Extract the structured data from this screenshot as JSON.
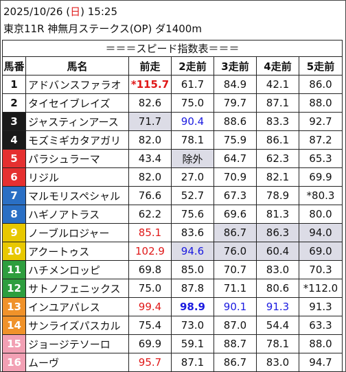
{
  "header": {
    "date": "2025/10/26",
    "day_open": "(",
    "day": "日",
    "day_close": ")",
    "time": "15:25",
    "race": "東京11R 神無月ステークス(OP) ダ1400m"
  },
  "table": {
    "title": "＝＝＝スピード指数表＝＝＝",
    "columns": [
      "馬番",
      "馬名",
      "前走",
      "2走前",
      "3走前",
      "4走前",
      "5走前"
    ],
    "rows": [
      {
        "num": "1",
        "bg": "#ffffff",
        "fg": "#111111",
        "name": "アドバンスファラオ",
        "cells": [
          {
            "t": "*115.7",
            "c": "red",
            "b": true
          },
          {
            "t": "61.7"
          },
          {
            "t": "84.9"
          },
          {
            "t": "42.1"
          },
          {
            "t": "86.0"
          }
        ]
      },
      {
        "num": "2",
        "bg": "#ffffff",
        "fg": "#111111",
        "name": "タイセイブレイズ",
        "cells": [
          {
            "t": "82.6"
          },
          {
            "t": "75.0"
          },
          {
            "t": "79.7"
          },
          {
            "t": "87.1"
          },
          {
            "t": "88.0"
          }
        ]
      },
      {
        "num": "3",
        "bg": "#1a1a1a",
        "fg": "#ffffff",
        "name": "ジャスティンアース",
        "cells": [
          {
            "t": "71.7",
            "g": true
          },
          {
            "t": "90.4",
            "c": "blue"
          },
          {
            "t": "88.6"
          },
          {
            "t": "83.3"
          },
          {
            "t": "92.7"
          }
        ]
      },
      {
        "num": "4",
        "bg": "#1a1a1a",
        "fg": "#ffffff",
        "name": "モズミギカタアガリ",
        "cells": [
          {
            "t": "82.0"
          },
          {
            "t": "78.1"
          },
          {
            "t": "75.9"
          },
          {
            "t": "86.1"
          },
          {
            "t": "87.2"
          }
        ]
      },
      {
        "num": "5",
        "bg": "#e53030",
        "fg": "#ffffff",
        "name": "パラシュラーマ",
        "cells": [
          {
            "t": "43.4"
          },
          {
            "t": "除外",
            "g": true
          },
          {
            "t": "64.7"
          },
          {
            "t": "62.3"
          },
          {
            "t": "65.3"
          }
        ]
      },
      {
        "num": "6",
        "bg": "#e53030",
        "fg": "#ffffff",
        "name": "リジル",
        "cells": [
          {
            "t": "82.0"
          },
          {
            "t": "27.0"
          },
          {
            "t": "70.9"
          },
          {
            "t": "82.1"
          },
          {
            "t": "69.9"
          }
        ]
      },
      {
        "num": "7",
        "bg": "#2a6fc4",
        "fg": "#ffffff",
        "name": "マルモリスペシャル",
        "cells": [
          {
            "t": "76.6"
          },
          {
            "t": "52.7"
          },
          {
            "t": "67.3"
          },
          {
            "t": "78.9"
          },
          {
            "t": "*80.3"
          }
        ]
      },
      {
        "num": "8",
        "bg": "#2a6fc4",
        "fg": "#ffffff",
        "name": "ハギノアトラス",
        "cells": [
          {
            "t": "62.2"
          },
          {
            "t": "75.6"
          },
          {
            "t": "69.6"
          },
          {
            "t": "81.3"
          },
          {
            "t": "80.0"
          }
        ]
      },
      {
        "num": "9",
        "bg": "#e8c800",
        "fg": "#ffffff",
        "name": "ノーブルロジャー",
        "cells": [
          {
            "t": "85.1",
            "c": "red"
          },
          {
            "t": "83.6"
          },
          {
            "t": "86.7",
            "g": true
          },
          {
            "t": "86.3",
            "g": true
          },
          {
            "t": "94.0",
            "g": true
          }
        ]
      },
      {
        "num": "10",
        "bg": "#e8c800",
        "fg": "#ffffff",
        "name": "アクートゥス",
        "cells": [
          {
            "t": "102.9",
            "c": "red"
          },
          {
            "t": "94.6",
            "c": "blue",
            "g": true
          },
          {
            "t": "76.0",
            "g": true
          },
          {
            "t": "60.4",
            "g": true
          },
          {
            "t": "69.0",
            "g": true
          }
        ]
      },
      {
        "num": "11",
        "bg": "#2e9e3e",
        "fg": "#ffffff",
        "name": "ハチメンロッピ",
        "cells": [
          {
            "t": "69.8"
          },
          {
            "t": "85.0"
          },
          {
            "t": "70.7"
          },
          {
            "t": "83.0"
          },
          {
            "t": "70.3"
          }
        ]
      },
      {
        "num": "12",
        "bg": "#2e9e3e",
        "fg": "#ffffff",
        "name": "サトノフェニックス",
        "cells": [
          {
            "t": "75.0"
          },
          {
            "t": "87.8"
          },
          {
            "t": "71.1"
          },
          {
            "t": "80.6"
          },
          {
            "t": "*112.0"
          }
        ]
      },
      {
        "num": "13",
        "bg": "#f0922a",
        "fg": "#ffffff",
        "name": "インユアパレス",
        "cells": [
          {
            "t": "99.4",
            "c": "red"
          },
          {
            "t": "98.9",
            "c": "blue",
            "b": true
          },
          {
            "t": "90.1",
            "c": "blue"
          },
          {
            "t": "91.3",
            "c": "blue"
          },
          {
            "t": "91.3"
          }
        ]
      },
      {
        "num": "14",
        "bg": "#f0922a",
        "fg": "#ffffff",
        "name": "サンライズパスカル",
        "cells": [
          {
            "t": "75.4"
          },
          {
            "t": "73.0"
          },
          {
            "t": "87.0"
          },
          {
            "t": "54.4"
          },
          {
            "t": "63.3"
          }
        ]
      },
      {
        "num": "15",
        "bg": "#f2a0b4",
        "fg": "#ffffff",
        "name": "ジョージテソーロ",
        "cells": [
          {
            "t": "69.9"
          },
          {
            "t": "59.1"
          },
          {
            "t": "88.7"
          },
          {
            "t": "78.1"
          },
          {
            "t": "88.0"
          }
        ]
      },
      {
        "num": "16",
        "bg": "#f2a0b4",
        "fg": "#ffffff",
        "name": "ムーヴ",
        "cells": [
          {
            "t": "95.7",
            "c": "red"
          },
          {
            "t": "87.1"
          },
          {
            "t": "86.7"
          },
          {
            "t": "83.0"
          },
          {
            "t": "94.7"
          }
        ]
      }
    ]
  }
}
